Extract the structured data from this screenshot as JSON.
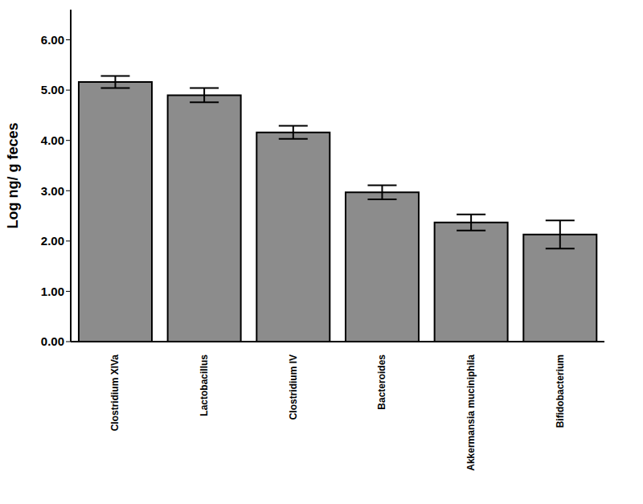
{
  "chart_data": {
    "type": "bar",
    "y_label": "Log ng/ g feces",
    "categories": [
      "Clostridium XIVa",
      "Lactobacillus",
      "Clostridium IV",
      "Bacteroides",
      "Akkermansia muciniphila",
      "Bifidobacterium"
    ],
    "values": [
      5.16,
      4.9,
      4.16,
      2.97,
      2.37,
      2.13
    ],
    "errors": [
      0.12,
      0.14,
      0.13,
      0.14,
      0.16,
      0.28
    ],
    "color": "#8c8c8c",
    "ylim": [
      0,
      6.6
    ],
    "yticks": [
      {
        "value": 0,
        "label": "0.00"
      },
      {
        "value": 1,
        "label": "1.00"
      },
      {
        "value": 2,
        "label": "2.00"
      },
      {
        "value": 3,
        "label": "3.00"
      },
      {
        "value": 4,
        "label": "4.00"
      },
      {
        "value": 5,
        "label": "5.00"
      },
      {
        "value": 6,
        "label": "6.00"
      }
    ],
    "grid": false
  }
}
